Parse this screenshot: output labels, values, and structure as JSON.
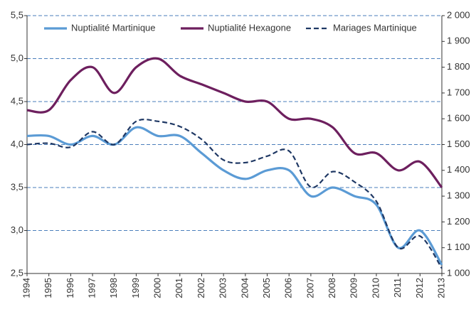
{
  "chart_data": {
    "type": "line",
    "x": [
      1994,
      1995,
      1996,
      1997,
      1998,
      1999,
      2000,
      2001,
      2002,
      2003,
      2004,
      2005,
      2006,
      2007,
      2008,
      2009,
      2010,
      2011,
      2012,
      2013
    ],
    "xlim": [
      1994,
      2013
    ],
    "xticks": [
      1994,
      1995,
      1996,
      1997,
      1998,
      1999,
      2000,
      2001,
      2002,
      2003,
      2004,
      2005,
      2006,
      2007,
      2008,
      2009,
      2010,
      2011,
      2012,
      2013
    ],
    "ylim": [
      2.5,
      5.5
    ],
    "yticks": [
      {
        "value": 2.5,
        "label": "2,5"
      },
      {
        "value": 3.0,
        "label": "3,0"
      },
      {
        "value": 3.5,
        "label": "3,5"
      },
      {
        "value": 4.0,
        "label": "4,0"
      },
      {
        "value": 4.5,
        "label": "4,5"
      },
      {
        "value": 5.0,
        "label": "5,0"
      },
      {
        "value": 5.5,
        "label": "5,5"
      }
    ],
    "y2lim": [
      1000,
      2000
    ],
    "y2ticks": [
      {
        "value": 1000,
        "label": "1 000"
      },
      {
        "value": 1100,
        "label": "1 100"
      },
      {
        "value": 1200,
        "label": "1 200"
      },
      {
        "value": 1300,
        "label": "1 300"
      },
      {
        "value": 1400,
        "label": "1 400"
      },
      {
        "value": 1500,
        "label": "1 500"
      },
      {
        "value": 1600,
        "label": "1 600"
      },
      {
        "value": 1700,
        "label": "1 700"
      },
      {
        "value": 1800,
        "label": "1 800"
      },
      {
        "value": 1900,
        "label": "1 900"
      },
      {
        "value": 2000,
        "label": "2 000"
      }
    ],
    "grid": true,
    "legend": "top",
    "series": [
      {
        "name": "Nuptialité Martinique",
        "color": "#5b9bd5",
        "dash": false,
        "values": [
          4.1,
          4.1,
          4.0,
          4.1,
          4.0,
          4.2,
          4.1,
          4.1,
          3.9,
          3.7,
          3.6,
          3.7,
          3.7,
          3.4,
          3.5,
          3.4,
          3.3,
          2.8,
          3.0,
          2.6
        ]
      },
      {
        "name": "Nuptialité Hexagone",
        "color": "#6d1f5e",
        "dash": false,
        "values": [
          4.4,
          4.4,
          4.75,
          4.9,
          4.6,
          4.9,
          5.0,
          4.8,
          4.7,
          4.6,
          4.5,
          4.5,
          4.3,
          4.3,
          4.2,
          3.9,
          3.9,
          3.7,
          3.8,
          3.5
        ]
      },
      {
        "name": "Mariages Martinique",
        "color": "#1f3864",
        "dash": true,
        "axis": "y2",
        "values": [
          1500,
          1505,
          1490,
          1550,
          1500,
          1590,
          1590,
          1570,
          1520,
          1440,
          1430,
          1455,
          1475,
          1335,
          1395,
          1355,
          1280,
          1100,
          1145,
          1020
        ]
      }
    ]
  }
}
